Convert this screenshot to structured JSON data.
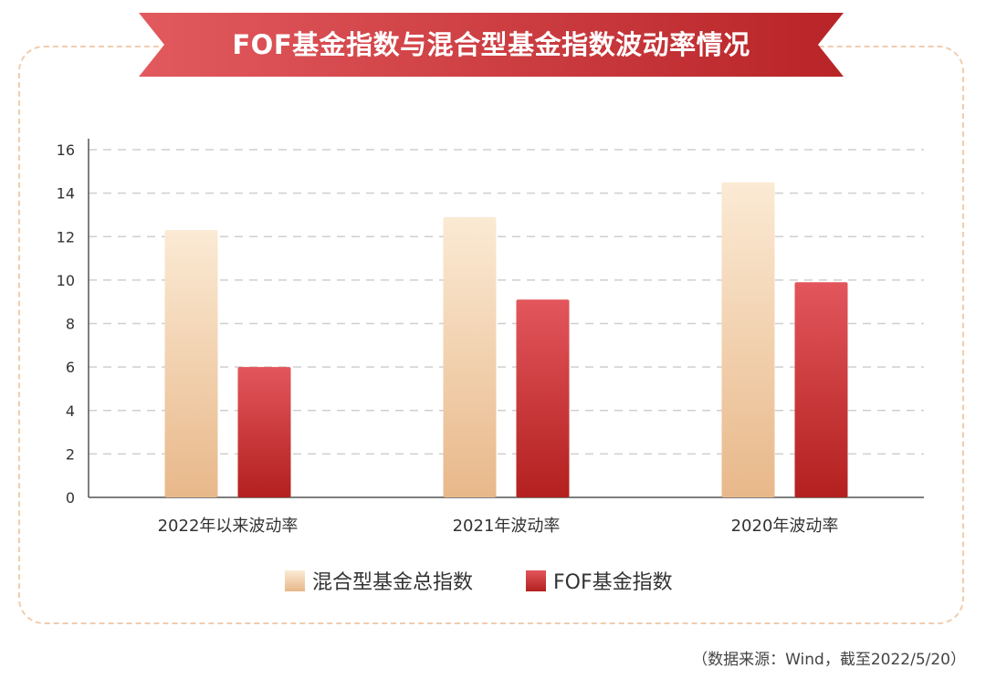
{
  "title": "FOF基金指数与混合型基金指数波动率情况",
  "source_note": "（数据来源：Wind，截至2022/5/20）",
  "colors": {
    "ribbon_left": "#e25a5e",
    "ribbon_right": "#b82428",
    "mixed_top": "#fbead4",
    "mixed_bottom": "#e8b88a",
    "fof_top": "#e2565c",
    "fof_bottom": "#b3201f",
    "frame": "#f0cdb0"
  },
  "chart_data": {
    "type": "bar",
    "categories": [
      "2022年以来波动率",
      "2021年波动率",
      "2020年波动率"
    ],
    "series": [
      {
        "name": "混合型基金总指数",
        "values": [
          12.3,
          12.9,
          14.5
        ]
      },
      {
        "name": "FOF基金指数",
        "values": [
          6.0,
          9.1,
          9.9
        ]
      }
    ],
    "ylim": [
      0,
      16
    ],
    "yticks": [
      0,
      2,
      4,
      6,
      8,
      10,
      12,
      14,
      16
    ],
    "grid": true,
    "legend": "bottom-center"
  }
}
